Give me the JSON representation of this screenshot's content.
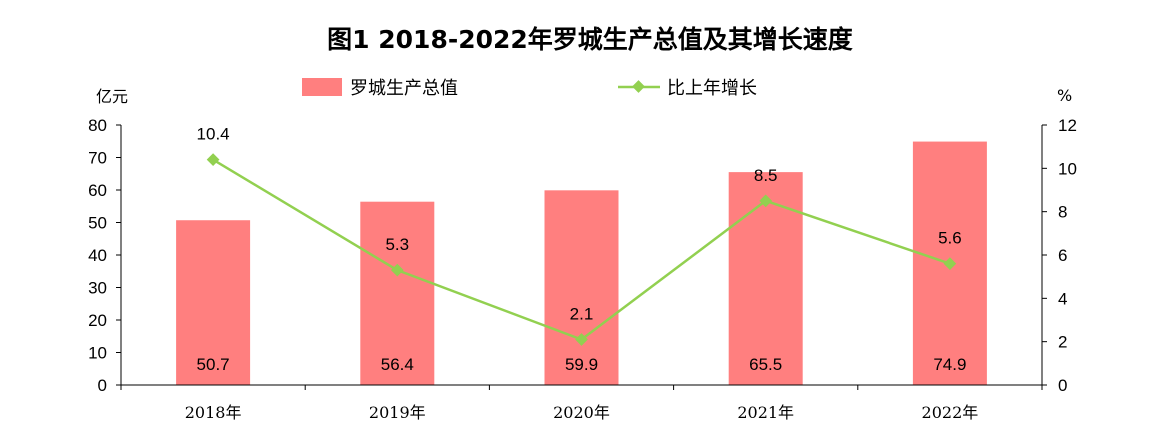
{
  "chart_data": {
    "type": "bar",
    "title": "图1  2018-2022年罗城生产总值及其增长速度",
    "categories": [
      "2018年",
      "2019年",
      "2020年",
      "2021年",
      "2022年"
    ],
    "series": [
      {
        "name": "罗城生产总值",
        "type": "bar",
        "axis": "left",
        "values": [
          50.7,
          56.4,
          59.9,
          65.5,
          74.9
        ]
      },
      {
        "name": "比上年增长",
        "type": "line",
        "axis": "right",
        "values": [
          10.4,
          5.3,
          2.1,
          8.5,
          5.6
        ]
      }
    ],
    "ylabel_left": "亿元",
    "ylabel_right": "%",
    "ylim_left": [
      0,
      80
    ],
    "ylim_right": [
      0,
      12
    ],
    "yticks_left": [
      "0",
      "10",
      "20",
      "30",
      "40",
      "50",
      "60",
      "70",
      "80"
    ],
    "yticks_right": [
      "0",
      "2",
      "4",
      "6",
      "8",
      "10",
      "12"
    ],
    "bar_labels": [
      "50.7",
      "56.4",
      "59.9",
      "65.5",
      "74.9"
    ],
    "line_labels": [
      "10.4",
      "5.3",
      "2.1",
      "8.5",
      "5.6"
    ],
    "legend_position": "top",
    "grid": false,
    "colors": {
      "bar": "#ff7f7f",
      "line": "#92d050",
      "marker": "#92d050",
      "axis": "#000000"
    }
  }
}
